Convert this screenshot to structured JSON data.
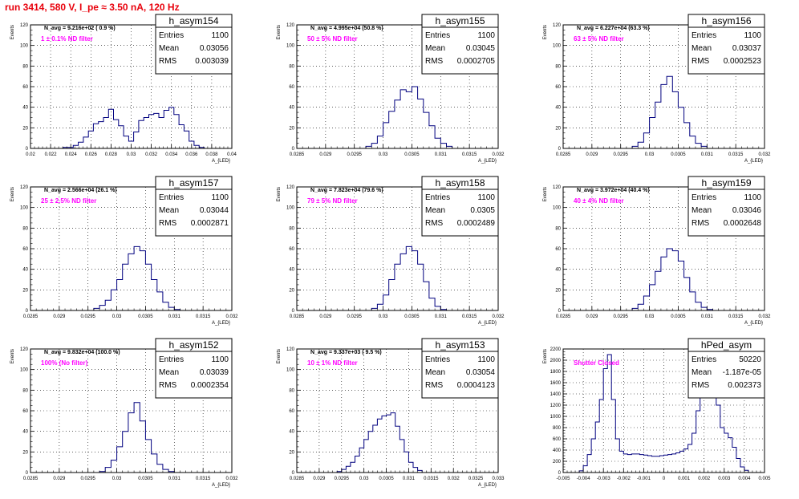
{
  "page": {
    "title": "run 3414,   580 V, I_pe ≈ 3.50 nA, 120 Hz",
    "title_color": "#e8000b",
    "annotation_color": "#ff00ff",
    "hist_color": "#00007f"
  },
  "chart_data": [
    {
      "type": "histogram",
      "name": "h_asym154",
      "ylabel": "Events",
      "xlabel": "A_{LED}",
      "xlim": [
        0.02,
        0.04
      ],
      "ylim": [
        0,
        120
      ],
      "xticks": [
        0.02,
        0.022,
        0.024,
        0.026,
        0.028,
        0.03,
        0.032,
        0.034,
        0.036,
        0.038,
        0.04
      ],
      "xtick_labels": [
        "0.02",
        "0.022",
        "0.024",
        "0.026",
        "0.028",
        "0.03",
        "0.032",
        "0.034",
        "0.036",
        "0.038",
        "0.04"
      ],
      "yticks": [
        0,
        20,
        40,
        60,
        80,
        100,
        120
      ],
      "navg": "N_avg = 9.216e+02 ( 0.9 %)",
      "filter": "1 ±  0.1% ND filter",
      "stats": [
        {
          "label": "Entries",
          "value": "1100"
        },
        {
          "label": "Mean",
          "value": "0.03056"
        },
        {
          "label": "RMS",
          "value": "0.003039"
        }
      ],
      "bins": [
        [
          0.0235,
          1
        ],
        [
          0.024,
          1
        ],
        [
          0.0245,
          3
        ],
        [
          0.025,
          6
        ],
        [
          0.0255,
          11
        ],
        [
          0.026,
          17
        ],
        [
          0.0265,
          24
        ],
        [
          0.027,
          26
        ],
        [
          0.0275,
          30
        ],
        [
          0.028,
          38
        ],
        [
          0.0285,
          28
        ],
        [
          0.029,
          22
        ],
        [
          0.0295,
          12
        ],
        [
          0.03,
          7
        ],
        [
          0.0305,
          16
        ],
        [
          0.031,
          27
        ],
        [
          0.0315,
          30
        ],
        [
          0.032,
          33
        ],
        [
          0.0325,
          34
        ],
        [
          0.033,
          30
        ],
        [
          0.0335,
          37
        ],
        [
          0.034,
          40
        ],
        [
          0.0345,
          33
        ],
        [
          0.035,
          23
        ],
        [
          0.0355,
          17
        ],
        [
          0.036,
          7
        ],
        [
          0.0365,
          3
        ],
        [
          0.037,
          1
        ]
      ]
    },
    {
      "type": "histogram",
      "name": "h_asym155",
      "ylabel": "Events",
      "xlabel": "A_{LED}",
      "xlim": [
        0.0285,
        0.032
      ],
      "ylim": [
        0,
        120
      ],
      "xticks": [
        0.0285,
        0.029,
        0.0295,
        0.03,
        0.0305,
        0.031,
        0.0315,
        0.032
      ],
      "xtick_labels": [
        "0.0285",
        "0.029",
        "0.0295",
        "0.03",
        "0.0305",
        "0.031",
        "0.0315",
        "0.032"
      ],
      "yticks": [
        0,
        20,
        40,
        60,
        80,
        100,
        120
      ],
      "navg": "N_avg = 4.995e+04 (50.8 %)",
      "filter": "50 ±  5% ND filter",
      "stats": [
        {
          "label": "Entries",
          "value": "1100"
        },
        {
          "label": "Mean",
          "value": "0.03045"
        },
        {
          "label": "RMS",
          "value": "0.0002705"
        }
      ],
      "bins": [
        [
          0.02975,
          2
        ],
        [
          0.02985,
          5
        ],
        [
          0.02995,
          12
        ],
        [
          0.03005,
          25
        ],
        [
          0.03015,
          36
        ],
        [
          0.03025,
          47
        ],
        [
          0.03035,
          57
        ],
        [
          0.03045,
          55
        ],
        [
          0.03055,
          60
        ],
        [
          0.03065,
          48
        ],
        [
          0.03075,
          35
        ],
        [
          0.03085,
          22
        ],
        [
          0.03095,
          10
        ],
        [
          0.03105,
          5
        ],
        [
          0.03115,
          2
        ]
      ]
    },
    {
      "type": "histogram",
      "name": "h_asym156",
      "ylabel": "Events",
      "xlabel": "A_{LED}",
      "xlim": [
        0.0285,
        0.032
      ],
      "ylim": [
        0,
        120
      ],
      "xticks": [
        0.0285,
        0.029,
        0.0295,
        0.03,
        0.0305,
        0.031,
        0.0315,
        0.032
      ],
      "xtick_labels": [
        "0.0285",
        "0.029",
        "0.0295",
        "0.03",
        "0.0305",
        "0.031",
        "0.0315",
        "0.032"
      ],
      "yticks": [
        0,
        20,
        40,
        60,
        80,
        100,
        120
      ],
      "navg": "N_avg = 6.227e+04 (63.3 %)",
      "filter": "63 ±  5% ND filter",
      "stats": [
        {
          "label": "Entries",
          "value": "1100"
        },
        {
          "label": "Mean",
          "value": "0.03037"
        },
        {
          "label": "RMS",
          "value": "0.0002523"
        }
      ],
      "bins": [
        [
          0.02975,
          2
        ],
        [
          0.02985,
          6
        ],
        [
          0.02995,
          15
        ],
        [
          0.03005,
          30
        ],
        [
          0.03015,
          45
        ],
        [
          0.03025,
          62
        ],
        [
          0.03035,
          70
        ],
        [
          0.03045,
          55
        ],
        [
          0.03055,
          40
        ],
        [
          0.03065,
          25
        ],
        [
          0.03075,
          12
        ],
        [
          0.03085,
          5
        ],
        [
          0.03095,
          2
        ]
      ]
    },
    {
      "type": "histogram",
      "name": "h_asym157",
      "ylabel": "Events",
      "xlabel": "A_{LED}",
      "xlim": [
        0.0285,
        0.032
      ],
      "ylim": [
        0,
        120
      ],
      "xticks": [
        0.0285,
        0.029,
        0.0295,
        0.03,
        0.0305,
        0.031,
        0.0315,
        0.032
      ],
      "xtick_labels": [
        "0.0285",
        "0.029",
        "0.0295",
        "0.03",
        "0.0305",
        "0.031",
        "0.0315",
        "0.032"
      ],
      "yticks": [
        0,
        20,
        40,
        60,
        80,
        100,
        120
      ],
      "navg": "N_avg = 2.566e+04 (26.1 %)",
      "filter": "25 ±  2.5% ND filter",
      "stats": [
        {
          "label": "Entries",
          "value": "1100"
        },
        {
          "label": "Mean",
          "value": "0.03044"
        },
        {
          "label": "RMS",
          "value": "0.0002871"
        }
      ],
      "bins": [
        [
          0.02965,
          2
        ],
        [
          0.02975,
          5
        ],
        [
          0.02985,
          10
        ],
        [
          0.02995,
          20
        ],
        [
          0.03005,
          30
        ],
        [
          0.03015,
          45
        ],
        [
          0.03025,
          55
        ],
        [
          0.03035,
          62
        ],
        [
          0.03045,
          58
        ],
        [
          0.03055,
          45
        ],
        [
          0.03065,
          30
        ],
        [
          0.03075,
          18
        ],
        [
          0.03085,
          8
        ],
        [
          0.03095,
          3
        ],
        [
          0.03105,
          1
        ]
      ]
    },
    {
      "type": "histogram",
      "name": "h_asym158",
      "ylabel": "Events",
      "xlabel": "A_{LED}",
      "xlim": [
        0.0285,
        0.032
      ],
      "ylim": [
        0,
        120
      ],
      "xticks": [
        0.0285,
        0.029,
        0.0295,
        0.03,
        0.0305,
        0.031,
        0.0315,
        0.032
      ],
      "xtick_labels": [
        "0.0285",
        "0.029",
        "0.0295",
        "0.03",
        "0.0305",
        "0.031",
        "0.0315",
        "0.032"
      ],
      "yticks": [
        0,
        20,
        40,
        60,
        80,
        100,
        120
      ],
      "navg": "N_avg = 7.823e+04 (79.6 %)",
      "filter": "79 ±  5% ND filter",
      "stats": [
        {
          "label": "Entries",
          "value": "1100"
        },
        {
          "label": "Mean",
          "value": "0.0305"
        },
        {
          "label": "RMS",
          "value": "0.0002489"
        }
      ],
      "bins": [
        [
          0.02985,
          2
        ],
        [
          0.02995,
          6
        ],
        [
          0.03005,
          15
        ],
        [
          0.03015,
          30
        ],
        [
          0.03025,
          45
        ],
        [
          0.03035,
          55
        ],
        [
          0.03045,
          62
        ],
        [
          0.03055,
          58
        ],
        [
          0.03065,
          45
        ],
        [
          0.03075,
          28
        ],
        [
          0.03085,
          12
        ],
        [
          0.03095,
          4
        ],
        [
          0.03105,
          1
        ]
      ]
    },
    {
      "type": "histogram",
      "name": "h_asym159",
      "ylabel": "Events",
      "xlabel": "A_{LED}",
      "xlim": [
        0.0285,
        0.032
      ],
      "ylim": [
        0,
        120
      ],
      "xticks": [
        0.0285,
        0.029,
        0.0295,
        0.03,
        0.0305,
        0.031,
        0.0315,
        0.032
      ],
      "xtick_labels": [
        "0.0285",
        "0.029",
        "0.0295",
        "0.03",
        "0.0305",
        "0.031",
        "0.0315",
        "0.032"
      ],
      "yticks": [
        0,
        20,
        40,
        60,
        80,
        100,
        120
      ],
      "navg": "N_avg = 3.972e+04 (40.4 %)",
      "filter": "40 ±  4% ND filter",
      "stats": [
        {
          "label": "Entries",
          "value": "1100"
        },
        {
          "label": "Mean",
          "value": "0.03046"
        },
        {
          "label": "RMS",
          "value": "0.0002648"
        }
      ],
      "bins": [
        [
          0.02975,
          2
        ],
        [
          0.02985,
          6
        ],
        [
          0.02995,
          14
        ],
        [
          0.03005,
          25
        ],
        [
          0.03015,
          38
        ],
        [
          0.03025,
          52
        ],
        [
          0.03035,
          60
        ],
        [
          0.03045,
          58
        ],
        [
          0.03055,
          48
        ],
        [
          0.03065,
          32
        ],
        [
          0.03075,
          18
        ],
        [
          0.03085,
          8
        ],
        [
          0.03095,
          3
        ],
        [
          0.03105,
          1
        ]
      ]
    },
    {
      "type": "histogram",
      "name": "h_asym152",
      "ylabel": "Events",
      "xlabel": "A_{LED}",
      "xlim": [
        0.0285,
        0.032
      ],
      "ylim": [
        0,
        120
      ],
      "xticks": [
        0.0285,
        0.029,
        0.0295,
        0.03,
        0.0305,
        0.031,
        0.0315,
        0.032
      ],
      "xtick_labels": [
        "0.0285",
        "0.029",
        "0.0295",
        "0.03",
        "0.0305",
        "0.031",
        "0.0315",
        "0.032"
      ],
      "yticks": [
        0,
        20,
        40,
        60,
        80,
        100,
        120
      ],
      "navg": "N_avg = 9.832e+04 (100.0 %)",
      "filter": "100% (No filter)",
      "stats": [
        {
          "label": "Entries",
          "value": "1100"
        },
        {
          "label": "Mean",
          "value": "0.03039"
        },
        {
          "label": "RMS",
          "value": "0.0002354"
        }
      ],
      "bins": [
        [
          0.02975,
          1
        ],
        [
          0.02985,
          5
        ],
        [
          0.02995,
          12
        ],
        [
          0.03005,
          25
        ],
        [
          0.03015,
          40
        ],
        [
          0.03025,
          58
        ],
        [
          0.03035,
          68
        ],
        [
          0.03045,
          50
        ],
        [
          0.03055,
          32
        ],
        [
          0.03065,
          18
        ],
        [
          0.03075,
          8
        ],
        [
          0.03085,
          3
        ],
        [
          0.03095,
          1
        ]
      ]
    },
    {
      "type": "histogram",
      "name": "h_asym153",
      "ylabel": "Events",
      "xlabel": "A_{LED}",
      "xlim": [
        0.0285,
        0.033
      ],
      "ylim": [
        0,
        120
      ],
      "xticks": [
        0.0285,
        0.029,
        0.0295,
        0.03,
        0.0305,
        0.031,
        0.0315,
        0.032,
        0.0325,
        0.033
      ],
      "xtick_labels": [
        "0.0285",
        "0.029",
        "0.0295",
        "0.03",
        "0.0305",
        "0.031",
        "0.0315",
        "0.032",
        "0.0325",
        "0.033"
      ],
      "yticks": [
        0,
        20,
        40,
        60,
        80,
        100,
        120
      ],
      "navg": "N_avg = 9.337e+03 ( 9.5 %)",
      "filter": "10 ±  1% ND filter",
      "stats": [
        {
          "label": "Entries",
          "value": "1100"
        },
        {
          "label": "Mean",
          "value": "0.03054"
        },
        {
          "label": "RMS",
          "value": "0.0004123"
        }
      ],
      "bins": [
        [
          0.02945,
          1
        ],
        [
          0.02955,
          3
        ],
        [
          0.02965,
          6
        ],
        [
          0.02975,
          10
        ],
        [
          0.02985,
          16
        ],
        [
          0.02995,
          24
        ],
        [
          0.03005,
          32
        ],
        [
          0.03015,
          40
        ],
        [
          0.03025,
          46
        ],
        [
          0.03035,
          52
        ],
        [
          0.03045,
          55
        ],
        [
          0.03055,
          56
        ],
        [
          0.03065,
          58
        ],
        [
          0.03075,
          45
        ],
        [
          0.03085,
          32
        ],
        [
          0.03095,
          20
        ],
        [
          0.03105,
          10
        ],
        [
          0.03115,
          5
        ],
        [
          0.03125,
          2
        ]
      ]
    },
    {
      "type": "histogram",
      "name": "hPed_asym",
      "ylabel": "Events",
      "xlabel": "",
      "xlim": [
        -0.005,
        0.005
      ],
      "ylim": [
        0,
        2200
      ],
      "xticks": [
        -0.005,
        -0.004,
        -0.003,
        -0.002,
        -0.001,
        0,
        0.001,
        0.002,
        0.003,
        0.004,
        0.005
      ],
      "xtick_labels": [
        "-0.005",
        "-0.004",
        "-0.003",
        "-0.002",
        "-0.001",
        "0",
        "0.001",
        "0.002",
        "0.003",
        "0.004",
        "0.005"
      ],
      "yticks": [
        0,
        200,
        400,
        600,
        800,
        1000,
        1200,
        1400,
        1600,
        1800,
        2000,
        2200
      ],
      "navg": "",
      "filter": "Shutter Closed",
      "stats": [
        {
          "label": "Entries",
          "value": "50220"
        },
        {
          "label": "Mean",
          "value": "-1.187e-05"
        },
        {
          "label": "RMS",
          "value": "0.002373"
        }
      ],
      "bins": [
        [
          -0.0041,
          30
        ],
        [
          -0.0039,
          120
        ],
        [
          -0.0037,
          320
        ],
        [
          -0.0035,
          600
        ],
        [
          -0.0033,
          900
        ],
        [
          -0.0031,
          1300
        ],
        [
          -0.0029,
          1850
        ],
        [
          -0.0027,
          2100
        ],
        [
          -0.0025,
          1300
        ],
        [
          -0.0023,
          600
        ],
        [
          -0.0021,
          380
        ],
        [
          -0.0019,
          330
        ],
        [
          -0.0017,
          320
        ],
        [
          -0.0015,
          330
        ],
        [
          -0.0013,
          330
        ],
        [
          -0.0011,
          320
        ],
        [
          -0.0009,
          310
        ],
        [
          -0.0007,
          300
        ],
        [
          -0.0005,
          290
        ],
        [
          -0.0003,
          290
        ],
        [
          -0.0001,
          300
        ],
        [
          0.0001,
          310
        ],
        [
          0.0003,
          320
        ],
        [
          0.0005,
          330
        ],
        [
          0.0007,
          350
        ],
        [
          0.0009,
          380
        ],
        [
          0.0011,
          420
        ],
        [
          0.0013,
          500
        ],
        [
          0.0015,
          700
        ],
        [
          0.0017,
          1100
        ],
        [
          0.0019,
          1600
        ],
        [
          0.0021,
          1900
        ],
        [
          0.0023,
          2000
        ],
        [
          0.0025,
          1700
        ],
        [
          0.0027,
          1200
        ],
        [
          0.0029,
          800
        ],
        [
          0.0031,
          700
        ],
        [
          0.0033,
          620
        ],
        [
          0.0035,
          450
        ],
        [
          0.0037,
          250
        ],
        [
          0.0039,
          100
        ],
        [
          0.0041,
          40
        ]
      ]
    }
  ]
}
